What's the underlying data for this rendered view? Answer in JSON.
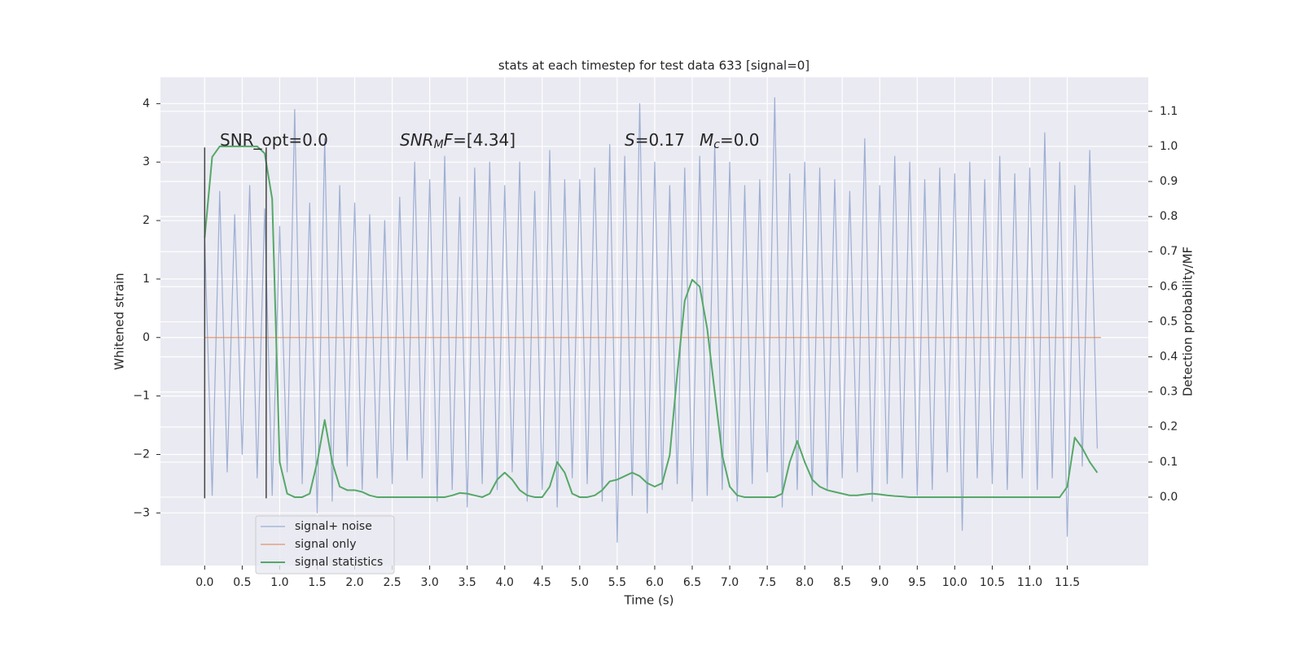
{
  "chart_data": {
    "type": "line",
    "title": "stats at each timestep for test data 633 [signal=0]",
    "xlabel": "Time (s)",
    "ylabel": "Whitened strain",
    "y2label": "Detection probability/MF",
    "xlim": [
      -0.59,
      12.58
    ],
    "ylim": [
      -3.9,
      4.45
    ],
    "y2lim": [
      -0.195,
      1.197
    ],
    "xticks": [
      {
        "value": 0,
        "label": "0.0"
      },
      0.5,
      {
        "value": 1,
        "label": "1.0"
      },
      1.5,
      {
        "value": 2,
        "label": "2.0"
      },
      2.5,
      {
        "value": 3,
        "label": "3.0"
      },
      3.5,
      {
        "value": 4,
        "label": "4.0"
      },
      4.5,
      {
        "value": 5,
        "label": "5.0"
      },
      5.5,
      {
        "value": 6,
        "label": "6.0"
      },
      6.5,
      {
        "value": 7,
        "label": "7.0"
      },
      7.5,
      {
        "value": 8,
        "label": "8.0"
      },
      8.5,
      {
        "value": 9,
        "label": "9.0"
      },
      9.5,
      {
        "value": 10,
        "label": "10.0"
      },
      10.5,
      {
        "value": 11,
        "label": "11.0"
      },
      11.5
    ],
    "yticks": [
      {
        "value": -3,
        "label": "−3"
      },
      {
        "value": -2,
        "label": "−2"
      },
      {
        "value": -1,
        "label": "−1"
      },
      0,
      1,
      2,
      3,
      4
    ],
    "y2ticks": [
      {
        "value": 0,
        "label": "0.0"
      },
      0.1,
      0.2,
      0.3,
      0.4,
      0.5,
      0.6,
      0.7,
      0.8,
      0.9,
      {
        "value": 1,
        "label": "1.0"
      },
      1.1
    ],
    "grid": true,
    "legend": "lower left",
    "x": [
      0,
      0.1,
      0.2,
      0.3,
      0.4,
      0.5,
      0.6,
      0.7,
      0.8,
      0.9,
      1,
      1.1,
      1.2,
      1.3,
      1.4,
      1.5,
      1.6,
      1.7,
      1.8,
      1.9,
      2,
      2.1,
      2.2,
      2.3,
      2.4,
      2.5,
      2.6,
      2.7,
      2.8,
      2.9,
      3,
      3.1,
      3.2,
      3.3,
      3.4,
      3.5,
      3.6,
      3.7,
      3.8,
      3.9,
      4,
      4.1,
      4.2,
      4.3,
      4.4,
      4.5,
      4.6,
      4.7,
      4.8,
      4.9,
      5,
      5.1,
      5.2,
      5.3,
      5.4,
      5.5,
      5.6,
      5.7,
      5.8,
      5.9,
      6,
      6.1,
      6.2,
      6.3,
      6.4,
      6.5,
      6.6,
      6.7,
      6.8,
      6.9,
      7,
      7.1,
      7.2,
      7.3,
      7.4,
      7.5,
      7.6,
      7.7,
      7.8,
      7.9,
      8,
      8.1,
      8.2,
      8.3,
      8.4,
      8.5,
      8.6,
      8.7,
      8.8,
      8.9,
      9,
      9.1,
      9.2,
      9.3,
      9.4,
      9.5,
      9.6,
      9.7,
      9.8,
      9.9,
      10,
      10.1,
      10.2,
      10.3,
      10.4,
      10.5,
      10.6,
      10.7,
      10.8,
      10.9,
      11,
      11.1,
      11.2,
      11.3,
      11.4,
      11.5,
      11.6,
      11.7,
      11.8,
      11.9
    ],
    "series": [
      {
        "name": "signal+ noise",
        "color": "#8fa3cd",
        "values": [
          1.7,
          -2.7,
          2.5,
          -2.3,
          2.1,
          -2.0,
          2.6,
          -2.4,
          2.2,
          -2.7,
          1.9,
          -2.3,
          3.9,
          -2.5,
          2.3,
          -3.0,
          3.4,
          -2.8,
          2.6,
          -2.2,
          2.3,
          -2.6,
          2.1,
          -2.4,
          2.0,
          -2.5,
          2.4,
          -2.1,
          3.0,
          -2.4,
          2.7,
          -2.8,
          3.1,
          -2.6,
          2.4,
          -2.9,
          2.9,
          -2.5,
          3.0,
          -2.6,
          2.6,
          -2.3,
          3.0,
          -2.8,
          2.5,
          -2.6,
          3.2,
          -2.9,
          2.7,
          -2.4,
          2.7,
          -2.5,
          2.9,
          -2.8,
          3.3,
          -3.5,
          3.1,
          -2.7,
          4.0,
          -3.0,
          3.0,
          -2.6,
          2.6,
          -2.5,
          2.9,
          -2.8,
          3.1,
          -2.7,
          3.3,
          -2.6,
          3.0,
          -2.8,
          2.6,
          -2.5,
          2.7,
          -2.3,
          4.1,
          -2.9,
          2.8,
          -2.6,
          3.0,
          -2.7,
          2.9,
          -2.6,
          2.7,
          -2.4,
          2.5,
          -2.3,
          3.4,
          -2.8,
          2.6,
          -2.5,
          3.1,
          -2.4,
          3.0,
          -2.7,
          2.7,
          -2.6,
          2.9,
          -2.3,
          2.8,
          -3.3,
          3.0,
          -2.4,
          2.7,
          -2.5,
          3.1,
          -2.6,
          2.8,
          -2.4,
          2.9,
          -2.6,
          3.5,
          -2.4,
          3.0,
          -3.4,
          2.6,
          -2.2,
          3.2,
          -1.9
        ]
      },
      {
        "name": "signal only",
        "color": "#dd8452",
        "x": [
          0,
          11.95
        ],
        "values": [
          0,
          0
        ]
      },
      {
        "name": "signal statistics",
        "color": "#55a868",
        "axis": "y2",
        "values": [
          0.74,
          0.97,
          1.0,
          1.0,
          1.0,
          1.0,
          1.0,
          1.0,
          0.98,
          0.85,
          0.1,
          0.01,
          0.0,
          0.0,
          0.01,
          0.1,
          0.22,
          0.1,
          0.03,
          0.02,
          0.02,
          0.015,
          0.005,
          0.0,
          0.0,
          0.0,
          0.0,
          0.0,
          0.0,
          0.0,
          0.0,
          0.0,
          0.0,
          0.005,
          0.012,
          0.01,
          0.005,
          0.0,
          0.01,
          0.05,
          0.07,
          0.05,
          0.02,
          0.005,
          0.0,
          0.0,
          0.03,
          0.1,
          0.07,
          0.01,
          0.0,
          0.0,
          0.005,
          0.02,
          0.045,
          0.05,
          0.06,
          0.07,
          0.06,
          0.04,
          0.03,
          0.04,
          0.12,
          0.35,
          0.56,
          0.62,
          0.6,
          0.48,
          0.3,
          0.12,
          0.03,
          0.005,
          0.0,
          0.0,
          0.0,
          0.0,
          0.0,
          0.01,
          0.1,
          0.16,
          0.1,
          0.05,
          0.03,
          0.02,
          0.015,
          0.01,
          0.005,
          0.005,
          0.008,
          0.01,
          0.008,
          0.005,
          0.003,
          0.002,
          0.0,
          0.0,
          0.0,
          0.0,
          0.0,
          0.0,
          0.0,
          0.0,
          0.0,
          0.0,
          0.0,
          0.0,
          0.0,
          0.0,
          0.0,
          0.0,
          0.0,
          0.0,
          0.0,
          0.0,
          0.0,
          0.03,
          0.17,
          0.14,
          0.1,
          0.07
        ]
      }
    ],
    "vlines": {
      "x": [
        0,
        0.82
      ],
      "ymin": -2.75,
      "ymax": 3.25,
      "color": "#444444"
    },
    "annotations": [
      [
        {
          "text": "SNR_opt=0.0"
        }
      ],
      [
        {
          "text": "SNR",
          "italic": true
        },
        {
          "text": "M",
          "italic": true,
          "sub": true
        },
        {
          "text": "F",
          "italic": true
        },
        {
          "text": "=[4.34]"
        }
      ],
      [
        {
          "text": "S",
          "italic": true
        },
        {
          "text": "=0.17"
        }
      ],
      [
        {
          "text": "M",
          "italic": true
        },
        {
          "text": "c",
          "italic": true,
          "sub": true
        },
        {
          "text": "=0.0"
        }
      ]
    ]
  }
}
